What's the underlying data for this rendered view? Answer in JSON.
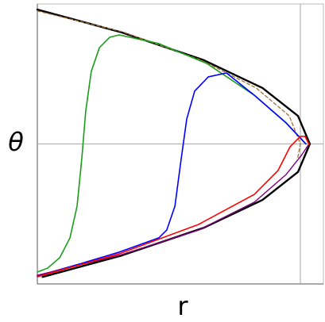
{
  "chart_data": {
    "type": "line",
    "xlabel": "r",
    "ylabel": "θ",
    "xlim": [
      0,
      1.0876
    ],
    "ylim": [
      -1,
      1
    ],
    "vlines": [
      1
    ],
    "hlines": [
      0
    ],
    "series": [
      {
        "color": "#000000",
        "width": 2.4,
        "x": [
          0,
          0.315,
          0.631,
          0.856,
          0.991,
          1.036,
          0.991,
          0.856,
          0.631,
          0.315,
          0.02
        ],
        "values": [
          0.96,
          0.8,
          0.6,
          0.4,
          0.2,
          0,
          -0.2,
          -0.4,
          -0.6,
          -0.8,
          -0.95
        ]
      },
      {
        "color": "#a0703a",
        "width": 1.3,
        "dashed": true,
        "x": [
          0,
          0.326,
          0.621,
          0.832,
          0.958,
          1.0,
          0.99
        ],
        "values": [
          0.95,
          0.8,
          0.6,
          0.4,
          0.2,
          0,
          -0.1
        ]
      },
      {
        "color": "#1a9e1a",
        "width": 1.6,
        "x": [
          0,
          0.039,
          0.085,
          0.124,
          0.151,
          0.169,
          0.184,
          0.205,
          0.236,
          0.275,
          0.311,
          0.462,
          0.644,
          0.825,
          0.946,
          1.021
        ],
        "values": [
          -0.915,
          -0.887,
          -0.813,
          -0.671,
          -0.445,
          -0.105,
          0.235,
          0.518,
          0.688,
          0.762,
          0.779,
          0.717,
          0.575,
          0.348,
          0.15,
          0
        ]
      },
      {
        "color": "#0000ff",
        "width": 1.6,
        "x": [
          0,
          0.16,
          0.311,
          0.462,
          0.492,
          0.523,
          0.547,
          0.568,
          0.598,
          0.65,
          0.719,
          0.825,
          0.946,
          1.021
        ],
        "values": [
          -0.943,
          -0.858,
          -0.773,
          -0.671,
          -0.615,
          -0.445,
          -0.105,
          0.178,
          0.377,
          0.479,
          0.507,
          0.348,
          0.15,
          0
        ]
      },
      {
        "color": "#800080",
        "width": 1.4,
        "x": [
          0,
          0.311,
          0.613,
          0.825,
          0.946,
          1.006,
          1.03
        ],
        "values": [
          -0.938,
          -0.796,
          -0.615,
          -0.416,
          -0.218,
          -0.076,
          -0.008
        ]
      },
      {
        "color": "#ff0000",
        "width": 1.6,
        "x": [
          0,
          0.311,
          0.613,
          0.825,
          0.915,
          0.961,
          1.0,
          1.018,
          1.033
        ],
        "values": [
          -0.949,
          -0.785,
          -0.575,
          -0.36,
          -0.19,
          -0.02,
          0.054,
          0.054,
          -0.003
        ]
      }
    ]
  }
}
